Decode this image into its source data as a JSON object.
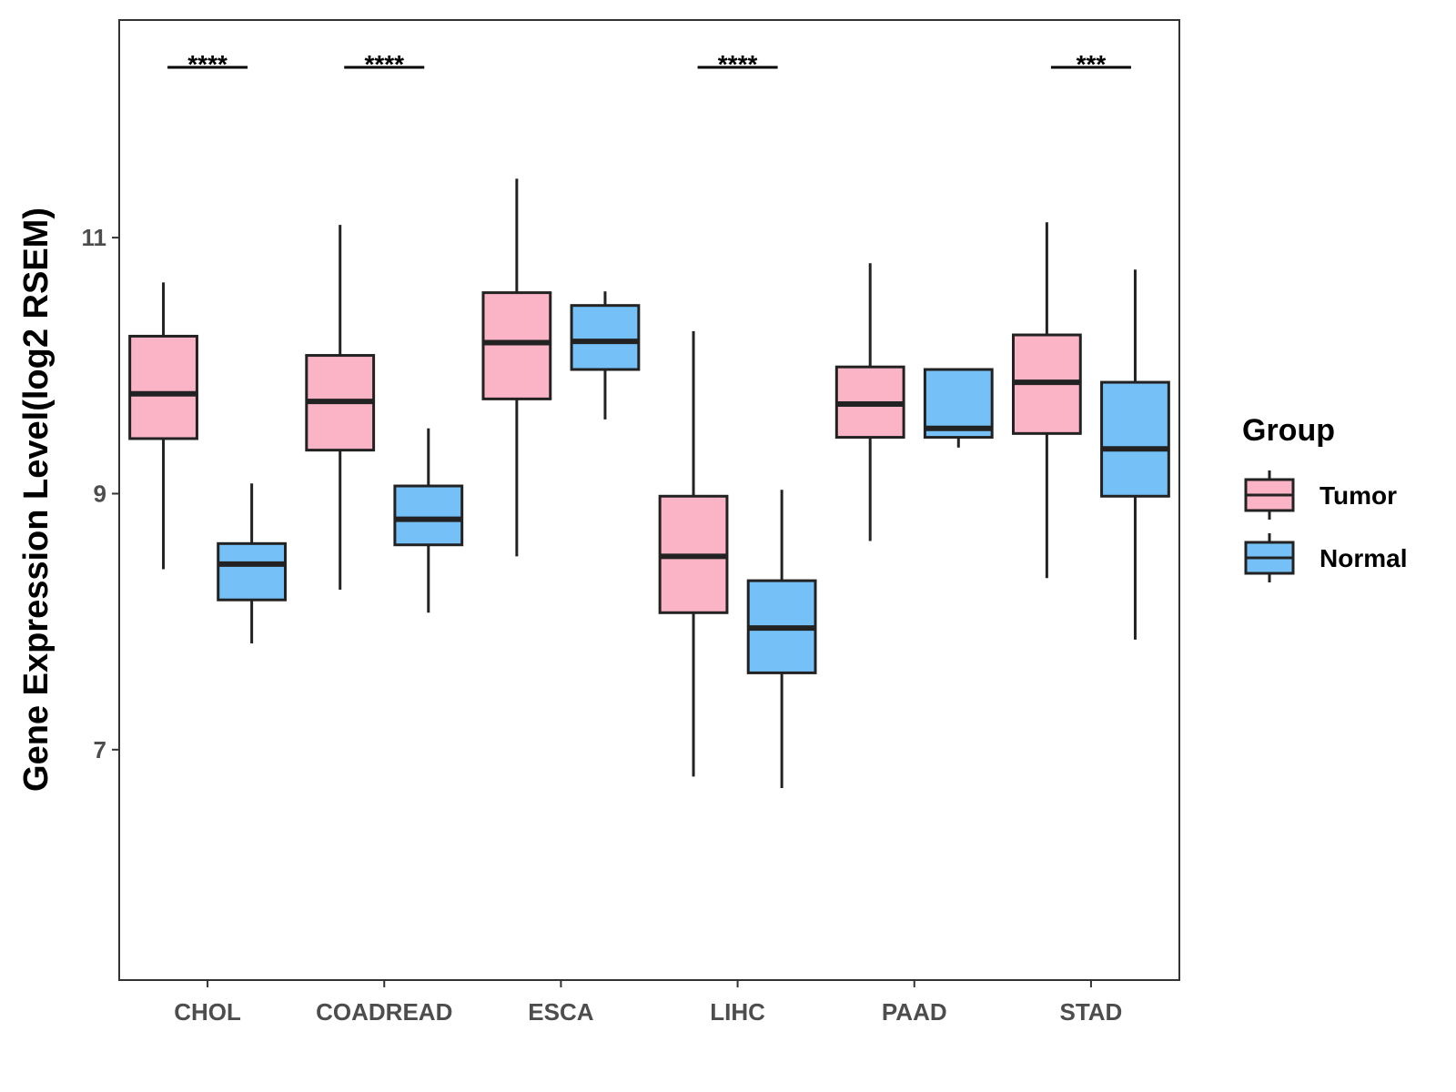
{
  "chart_data": {
    "type": "boxplot",
    "title": "",
    "xlabel": "",
    "ylabel": "Gene Expression Level(log2 RSEM)",
    "ylim": [
      5.2,
      12.7
    ],
    "yticks": [
      7,
      9,
      11
    ],
    "categories": [
      "CHOL",
      "COADREAD",
      "ESCA",
      "LIHC",
      "PAAD",
      "STAD"
    ],
    "legend": {
      "title": "Group",
      "position": "right",
      "entries": [
        {
          "name": "Tumor",
          "color": "#FBB4C6"
        },
        {
          "name": "Normal",
          "color": "#75C1F7"
        }
      ]
    },
    "series": [
      {
        "name": "Tumor",
        "color": "#FBB4C6",
        "boxes": [
          {
            "min": 8.41,
            "q1": 9.43,
            "median": 9.78,
            "q3": 10.23,
            "max": 10.65
          },
          {
            "min": 8.25,
            "q1": 9.34,
            "median": 9.72,
            "q3": 10.08,
            "max": 11.1
          },
          {
            "min": 8.51,
            "q1": 9.74,
            "median": 10.18,
            "q3": 10.57,
            "max": 11.46
          },
          {
            "min": 6.79,
            "q1": 8.07,
            "median": 8.51,
            "q3": 8.98,
            "max": 10.27
          },
          {
            "min": 8.63,
            "q1": 9.44,
            "median": 9.7,
            "q3": 9.99,
            "max": 10.8
          },
          {
            "min": 8.34,
            "q1": 9.47,
            "median": 9.87,
            "q3": 10.24,
            "max": 11.12
          }
        ]
      },
      {
        "name": "Normal",
        "color": "#75C1F7",
        "boxes": [
          {
            "min": 7.83,
            "q1": 8.17,
            "median": 8.45,
            "q3": 8.61,
            "max": 9.08
          },
          {
            "min": 8.07,
            "q1": 8.6,
            "median": 8.8,
            "q3": 9.06,
            "max": 9.51
          },
          {
            "min": 9.58,
            "q1": 9.97,
            "median": 10.19,
            "q3": 10.47,
            "max": 10.58
          },
          {
            "min": 6.7,
            "q1": 7.6,
            "median": 7.95,
            "q3": 8.32,
            "max": 9.03
          },
          {
            "min": 9.36,
            "q1": 9.44,
            "median": 9.51,
            "q3": 9.97,
            "max": 9.97
          },
          {
            "min": 7.86,
            "q1": 8.98,
            "median": 9.35,
            "q3": 9.87,
            "max": 10.75
          }
        ]
      }
    ],
    "significance": [
      "****",
      "****",
      "",
      "****",
      "",
      "***"
    ]
  }
}
